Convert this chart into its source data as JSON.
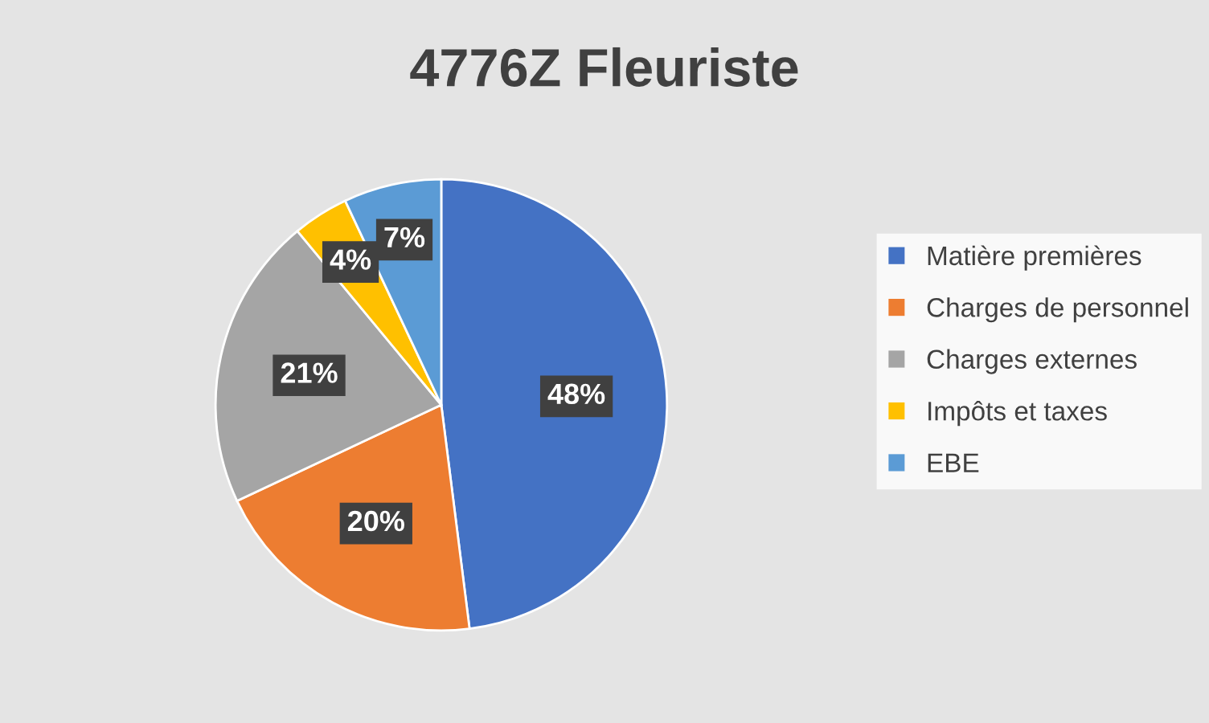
{
  "chart_data": {
    "type": "pie",
    "title": "4776Z Fleuriste",
    "categories": [
      "Matière premières",
      "Charges de personnel",
      "Charges externes",
      "Impôts et taxes",
      "EBE"
    ],
    "values": [
      48,
      20,
      21,
      4,
      7
    ],
    "value_labels": [
      "48%",
      "20%",
      "21%",
      "4%",
      "7%"
    ],
    "colors": [
      "#4472c4",
      "#ed7d31",
      "#a5a5a5",
      "#ffc000",
      "#5b9bd5"
    ],
    "legend": "right"
  }
}
